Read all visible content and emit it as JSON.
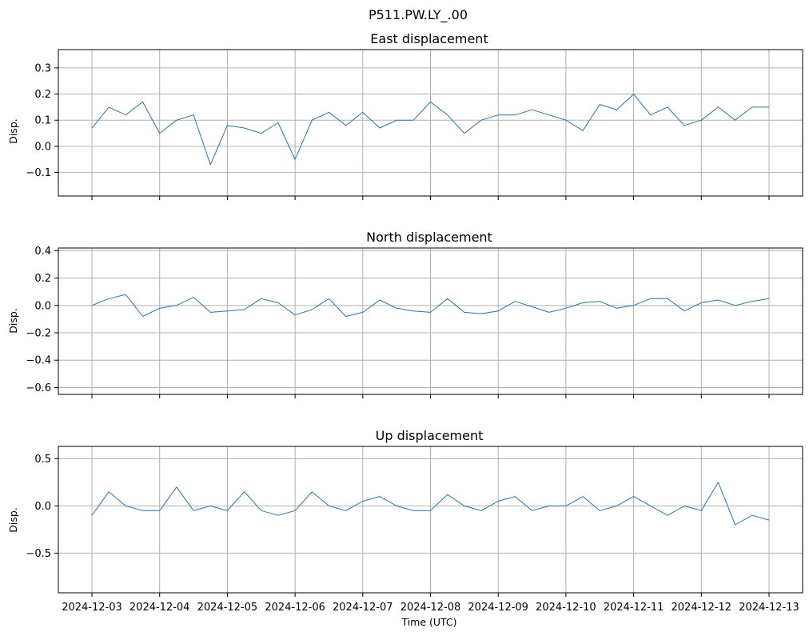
{
  "figure": {
    "title": "P511.PW.LY_.00",
    "xlabel": "Time (UTC)",
    "line_color": "#1f77b4"
  },
  "chart_data": [
    {
      "type": "line",
      "title": "East displacement",
      "ylabel": "Disp.",
      "ylim": [
        -0.19,
        0.37
      ],
      "yticks": [
        0.3,
        0.2,
        0.1,
        0.0,
        -0.1
      ],
      "ytick_labels": [
        "0.3",
        "0.2",
        "0.1",
        "0.0",
        "−0.1"
      ],
      "x": [
        "2024-12-03T00:00",
        "2024-12-03T06:00",
        "2024-12-03T12:00",
        "2024-12-03T18:00",
        "2024-12-04T00:00",
        "2024-12-04T06:00",
        "2024-12-04T12:00",
        "2024-12-04T18:00",
        "2024-12-05T00:00",
        "2024-12-05T06:00",
        "2024-12-05T12:00",
        "2024-12-05T18:00",
        "2024-12-06T00:00",
        "2024-12-06T06:00",
        "2024-12-06T12:00",
        "2024-12-06T18:00",
        "2024-12-07T00:00",
        "2024-12-07T06:00",
        "2024-12-07T12:00",
        "2024-12-07T18:00",
        "2024-12-08T00:00",
        "2024-12-08T06:00",
        "2024-12-08T12:00",
        "2024-12-08T18:00",
        "2024-12-09T00:00",
        "2024-12-09T06:00",
        "2024-12-09T12:00",
        "2024-12-09T18:00",
        "2024-12-10T00:00",
        "2024-12-10T06:00",
        "2024-12-10T12:00",
        "2024-12-10T18:00",
        "2024-12-11T00:00",
        "2024-12-11T06:00",
        "2024-12-11T12:00",
        "2024-12-11T18:00",
        "2024-12-12T00:00",
        "2024-12-12T06:00",
        "2024-12-12T12:00",
        "2024-12-12T18:00",
        "2024-12-13T00:00"
      ],
      "values": [
        0.07,
        0.15,
        0.12,
        0.17,
        0.05,
        0.1,
        0.12,
        -0.07,
        0.08,
        0.07,
        0.05,
        0.09,
        -0.05,
        0.1,
        0.13,
        0.08,
        0.13,
        0.07,
        0.1,
        0.1,
        0.17,
        0.12,
        0.05,
        0.1,
        0.12,
        0.12,
        0.14,
        0.12,
        0.1,
        0.06,
        0.16,
        0.14,
        0.2,
        0.12,
        0.15,
        0.08,
        0.1,
        0.15,
        0.1,
        0.15,
        0.15
      ]
    },
    {
      "type": "line",
      "title": "North displacement",
      "ylabel": "Disp.",
      "ylim": [
        -0.65,
        0.42
      ],
      "yticks": [
        0.4,
        0.2,
        0.0,
        -0.2,
        -0.4,
        -0.6
      ],
      "ytick_labels": [
        "0.4",
        "0.2",
        "0.0",
        "−0.2",
        "−0.4",
        "−0.6"
      ],
      "x": [
        "2024-12-03T00:00",
        "2024-12-03T06:00",
        "2024-12-03T12:00",
        "2024-12-03T18:00",
        "2024-12-04T00:00",
        "2024-12-04T06:00",
        "2024-12-04T12:00",
        "2024-12-04T18:00",
        "2024-12-05T00:00",
        "2024-12-05T06:00",
        "2024-12-05T12:00",
        "2024-12-05T18:00",
        "2024-12-06T00:00",
        "2024-12-06T06:00",
        "2024-12-06T12:00",
        "2024-12-06T18:00",
        "2024-12-07T00:00",
        "2024-12-07T06:00",
        "2024-12-07T12:00",
        "2024-12-07T18:00",
        "2024-12-08T00:00",
        "2024-12-08T06:00",
        "2024-12-08T12:00",
        "2024-12-08T18:00",
        "2024-12-09T00:00",
        "2024-12-09T06:00",
        "2024-12-09T12:00",
        "2024-12-09T18:00",
        "2024-12-10T00:00",
        "2024-12-10T06:00",
        "2024-12-10T12:00",
        "2024-12-10T18:00",
        "2024-12-11T00:00",
        "2024-12-11T06:00",
        "2024-12-11T12:00",
        "2024-12-11T18:00",
        "2024-12-12T00:00",
        "2024-12-12T06:00",
        "2024-12-12T12:00",
        "2024-12-12T18:00",
        "2024-12-13T00:00"
      ],
      "values": [
        0.0,
        0.05,
        0.08,
        -0.08,
        -0.02,
        0.0,
        0.06,
        -0.05,
        -0.04,
        -0.03,
        0.05,
        0.02,
        -0.07,
        -0.03,
        0.05,
        -0.08,
        -0.05,
        0.04,
        -0.02,
        -0.04,
        -0.05,
        0.05,
        -0.05,
        -0.06,
        -0.04,
        0.03,
        -0.01,
        -0.05,
        -0.02,
        0.02,
        0.03,
        -0.02,
        0.0,
        0.05,
        0.05,
        -0.04,
        0.02,
        0.04,
        0.0,
        0.03,
        0.05
      ]
    },
    {
      "type": "line",
      "title": "Up displacement",
      "ylabel": "Disp.",
      "ylim": [
        -0.92,
        0.63
      ],
      "yticks": [
        0.5,
        0.0,
        -0.5
      ],
      "ytick_labels": [
        "0.5",
        "0.0",
        "−0.5"
      ],
      "x": [
        "2024-12-03T00:00",
        "2024-12-03T06:00",
        "2024-12-03T12:00",
        "2024-12-03T18:00",
        "2024-12-04T00:00",
        "2024-12-04T06:00",
        "2024-12-04T12:00",
        "2024-12-04T18:00",
        "2024-12-05T00:00",
        "2024-12-05T06:00",
        "2024-12-05T12:00",
        "2024-12-05T18:00",
        "2024-12-06T00:00",
        "2024-12-06T06:00",
        "2024-12-06T12:00",
        "2024-12-06T18:00",
        "2024-12-07T00:00",
        "2024-12-07T06:00",
        "2024-12-07T12:00",
        "2024-12-07T18:00",
        "2024-12-08T00:00",
        "2024-12-08T06:00",
        "2024-12-08T12:00",
        "2024-12-08T18:00",
        "2024-12-09T00:00",
        "2024-12-09T06:00",
        "2024-12-09T12:00",
        "2024-12-09T18:00",
        "2024-12-10T00:00",
        "2024-12-10T06:00",
        "2024-12-10T12:00",
        "2024-12-10T18:00",
        "2024-12-11T00:00",
        "2024-12-11T06:00",
        "2024-12-11T12:00",
        "2024-12-11T18:00",
        "2024-12-12T00:00",
        "2024-12-12T06:00",
        "2024-12-12T12:00",
        "2024-12-12T18:00",
        "2024-12-13T00:00"
      ],
      "values": [
        -0.1,
        0.15,
        0.0,
        -0.05,
        -0.05,
        0.2,
        -0.05,
        0.0,
        -0.05,
        0.15,
        -0.05,
        -0.1,
        -0.05,
        0.15,
        0.0,
        -0.05,
        0.05,
        0.1,
        0.0,
        -0.05,
        -0.05,
        0.12,
        0.0,
        -0.05,
        0.05,
        0.1,
        -0.05,
        0.0,
        0.0,
        0.1,
        -0.05,
        0.0,
        0.1,
        0.0,
        -0.1,
        0.0,
        -0.05,
        0.25,
        -0.2,
        -0.1,
        -0.15
      ]
    }
  ],
  "x_axis": {
    "ticks": [
      "2024-12-03",
      "2024-12-04",
      "2024-12-05",
      "2024-12-06",
      "2024-12-07",
      "2024-12-08",
      "2024-12-09",
      "2024-12-10",
      "2024-12-11",
      "2024-12-12",
      "2024-12-13"
    ]
  }
}
